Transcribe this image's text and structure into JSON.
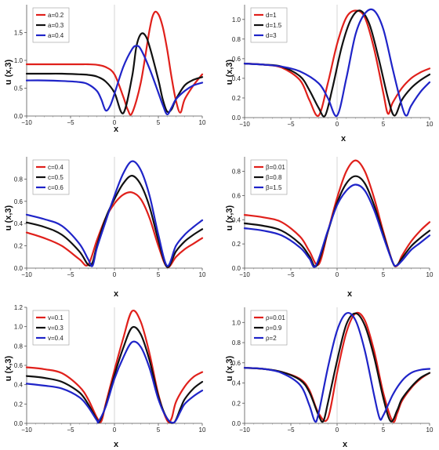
{
  "chart_data": [
    {
      "type": "line",
      "xlabel": "x",
      "ylabel": "u (x,3)",
      "xlim": [
        -10,
        10
      ],
      "ylim": [
        0,
        2.0
      ],
      "xticks": [
        "-10",
        "-5",
        "0",
        "5",
        "10"
      ],
      "yticks": [
        "0.0",
        "0.5",
        "1.0",
        "1.5"
      ],
      "legend_position": "top-left",
      "series": [
        {
          "name": "a=0.2",
          "color": "#e0201b",
          "x": [
            -10,
            -8,
            -6,
            -4,
            -3,
            -2,
            -1,
            0,
            1,
            1.5,
            2,
            3,
            4,
            4.5,
            5,
            5.5,
            6,
            6.5,
            7,
            7.5,
            8,
            9,
            10
          ],
          "y": [
            0.93,
            0.93,
            0.93,
            0.93,
            0.93,
            0.92,
            0.88,
            0.75,
            0.35,
            0.12,
            0.05,
            0.6,
            1.55,
            1.85,
            1.83,
            1.6,
            1.2,
            0.7,
            0.28,
            0.06,
            0.3,
            0.55,
            0.75
          ]
        },
        {
          "name": "a=0.3",
          "color": "#111111",
          "x": [
            -10,
            -8,
            -6,
            -4,
            -3,
            -2,
            -1,
            0,
            1,
            2,
            2.5,
            3,
            3.5,
            4,
            5,
            5.5,
            6,
            6.5,
            7,
            8,
            9,
            10
          ],
          "y": [
            0.76,
            0.76,
            0.76,
            0.75,
            0.74,
            0.71,
            0.62,
            0.42,
            0.05,
            0.7,
            1.25,
            1.47,
            1.45,
            1.25,
            0.65,
            0.3,
            0.08,
            0.12,
            0.3,
            0.55,
            0.65,
            0.7
          ]
        },
        {
          "name": "a=0.4",
          "color": "#1f24c8",
          "x": [
            -10,
            -8,
            -6,
            -4,
            -3,
            -2,
            -1.5,
            -1,
            -0.5,
            0,
            1,
            2,
            2.5,
            3,
            4,
            5,
            5.5,
            6,
            6.5,
            7,
            8,
            9,
            10
          ],
          "y": [
            0.64,
            0.64,
            0.63,
            0.61,
            0.57,
            0.45,
            0.3,
            0.1,
            0.18,
            0.4,
            0.88,
            1.2,
            1.26,
            1.2,
            0.85,
            0.42,
            0.2,
            0.03,
            0.15,
            0.3,
            0.45,
            0.55,
            0.6
          ]
        }
      ]
    },
    {
      "type": "line",
      "xlabel": "x",
      "ylabel": "u (x,3)",
      "xlim": [
        -10,
        10
      ],
      "ylim": [
        0,
        1.15
      ],
      "xticks": [
        "-10",
        "-5",
        "0",
        "5",
        "10"
      ],
      "yticks": [
        "0.0",
        "0.2",
        "0.4",
        "0.6",
        "0.8",
        "1.0"
      ],
      "legend_position": "top-left",
      "series": [
        {
          "name": "d=1",
          "color": "#e0201b",
          "x": [
            -10,
            -8,
            -6,
            -4,
            -3,
            -2,
            -1,
            0,
            1,
            2,
            3,
            4,
            5,
            5.5,
            6,
            7,
            8,
            9,
            10
          ],
          "y": [
            0.55,
            0.54,
            0.51,
            0.38,
            0.18,
            0.02,
            0.35,
            0.75,
            1.02,
            1.09,
            1.02,
            0.7,
            0.25,
            0.04,
            0.15,
            0.3,
            0.4,
            0.46,
            0.5
          ]
        },
        {
          "name": "d=1.5",
          "color": "#111111",
          "x": [
            -10,
            -8,
            -6,
            -4,
            -3,
            -2,
            -1.3,
            -0.5,
            0.5,
            1.5,
            2.5,
            3.5,
            4.5,
            5.5,
            6.2,
            7,
            8,
            9,
            10
          ],
          "y": [
            0.55,
            0.54,
            0.52,
            0.42,
            0.28,
            0.1,
            0.02,
            0.3,
            0.72,
            1.0,
            1.09,
            0.95,
            0.6,
            0.2,
            0.02,
            0.18,
            0.3,
            0.38,
            0.44
          ]
        },
        {
          "name": "d=3",
          "color": "#1f24c8",
          "x": [
            -10,
            -8,
            -6,
            -4,
            -2,
            -1,
            0,
            1,
            2,
            3,
            4,
            5,
            6,
            7,
            7.5,
            8,
            9,
            10
          ],
          "y": [
            0.55,
            0.54,
            0.52,
            0.47,
            0.35,
            0.2,
            0.02,
            0.4,
            0.85,
            1.06,
            1.09,
            0.9,
            0.5,
            0.12,
            0.02,
            0.12,
            0.26,
            0.36
          ]
        }
      ]
    },
    {
      "type": "line",
      "xlabel": "x",
      "ylabel": "u (x,3)",
      "xlim": [
        -10,
        10
      ],
      "ylim": [
        0,
        1.0
      ],
      "xticks": [
        "-10",
        "-5",
        "0",
        "5",
        "10"
      ],
      "yticks": [
        "0.0",
        "0.2",
        "0.4",
        "0.6",
        "0.8"
      ],
      "legend_position": "top-left",
      "series": [
        {
          "name": "c=0.4",
          "color": "#e0201b",
          "x": [
            -10,
            -8,
            -6,
            -4,
            -3,
            -2,
            -1,
            0,
            1,
            2,
            3,
            4,
            5,
            6,
            7,
            8,
            9,
            10
          ],
          "y": [
            0.32,
            0.27,
            0.2,
            0.08,
            0.03,
            0.25,
            0.45,
            0.58,
            0.66,
            0.68,
            0.62,
            0.45,
            0.2,
            0.01,
            0.1,
            0.17,
            0.22,
            0.27
          ]
        },
        {
          "name": "c=0.5",
          "color": "#111111",
          "x": [
            -10,
            -8,
            -6,
            -4,
            -3,
            -2.5,
            -2,
            -1,
            0,
            1,
            2,
            3,
            4,
            5,
            6,
            7,
            8,
            9,
            10
          ],
          "y": [
            0.41,
            0.37,
            0.3,
            0.15,
            0.03,
            0.05,
            0.2,
            0.45,
            0.62,
            0.76,
            0.83,
            0.75,
            0.55,
            0.25,
            0.01,
            0.15,
            0.24,
            0.3,
            0.35
          ]
        },
        {
          "name": "c=0.6",
          "color": "#1f24c8",
          "x": [
            -10,
            -8,
            -6,
            -4,
            -3,
            -2.5,
            -2,
            -1,
            0,
            1,
            2,
            3,
            4,
            5,
            6,
            7,
            8,
            9,
            10
          ],
          "y": [
            0.48,
            0.44,
            0.38,
            0.22,
            0.08,
            0.02,
            0.18,
            0.42,
            0.65,
            0.85,
            0.96,
            0.88,
            0.65,
            0.3,
            0.02,
            0.2,
            0.3,
            0.37,
            0.43
          ]
        }
      ]
    },
    {
      "type": "line",
      "xlabel": "x",
      "ylabel": "u (x,3)",
      "xlim": [
        -10,
        10
      ],
      "ylim": [
        0,
        0.92
      ],
      "xticks": [
        "-10",
        "-5",
        "0",
        "5",
        "10"
      ],
      "yticks": [
        "0.0",
        "0.2",
        "0.4",
        "0.6",
        "0.8"
      ],
      "legend_position": "top-left",
      "series": [
        {
          "name": "β=0.01",
          "color": "#e0201b",
          "x": [
            -10,
            -8,
            -6,
            -4,
            -3,
            -2,
            -1,
            0,
            1,
            2,
            3,
            4,
            5,
            6,
            6.5,
            7,
            8,
            9,
            10
          ],
          "y": [
            0.44,
            0.42,
            0.38,
            0.26,
            0.14,
            0.03,
            0.3,
            0.58,
            0.8,
            0.89,
            0.8,
            0.58,
            0.3,
            0.05,
            0.02,
            0.1,
            0.22,
            0.31,
            0.38
          ]
        },
        {
          "name": "β=0.8",
          "color": "#111111",
          "x": [
            -10,
            -8,
            -6,
            -4,
            -3,
            -2.2,
            -1,
            0,
            1,
            2,
            3,
            4,
            5,
            6,
            6.4,
            7,
            8,
            9,
            10
          ],
          "y": [
            0.37,
            0.35,
            0.31,
            0.2,
            0.1,
            0.02,
            0.3,
            0.54,
            0.7,
            0.76,
            0.7,
            0.52,
            0.28,
            0.05,
            0.02,
            0.08,
            0.18,
            0.25,
            0.31
          ]
        },
        {
          "name": "β=1.5",
          "color": "#1f24c8",
          "x": [
            -10,
            -8,
            -6,
            -4,
            -3,
            -2.3,
            -1,
            0,
            1,
            2,
            3,
            4,
            5,
            6,
            6.4,
            7,
            8,
            9,
            10
          ],
          "y": [
            0.33,
            0.31,
            0.27,
            0.17,
            0.08,
            0.02,
            0.31,
            0.52,
            0.64,
            0.69,
            0.64,
            0.48,
            0.26,
            0.05,
            0.02,
            0.06,
            0.15,
            0.21,
            0.27
          ]
        }
      ]
    },
    {
      "type": "line",
      "xlabel": "x",
      "ylabel": "u (x,3)",
      "xlim": [
        -10,
        10
      ],
      "ylim": [
        0,
        1.2
      ],
      "xticks": [
        "-10",
        "-5",
        "0",
        "5",
        "10"
      ],
      "yticks": [
        "0.0",
        "0.2",
        "0.4",
        "0.6",
        "0.8",
        "1.0",
        "1.2"
      ],
      "legend_position": "top-left",
      "series": [
        {
          "name": "v=0.1",
          "color": "#e0201b",
          "x": [
            -10,
            -8,
            -6,
            -4,
            -3,
            -2,
            -1.5,
            -1,
            0,
            1,
            2,
            3,
            4,
            5,
            6,
            6.5,
            7,
            8,
            9,
            10
          ],
          "y": [
            0.58,
            0.56,
            0.52,
            0.38,
            0.25,
            0.06,
            0.02,
            0.2,
            0.55,
            0.88,
            1.16,
            1.05,
            0.72,
            0.3,
            0.03,
            0.05,
            0.22,
            0.38,
            0.48,
            0.53
          ]
        },
        {
          "name": "v=0.3",
          "color": "#111111",
          "x": [
            -10,
            -8,
            -6,
            -4,
            -3,
            -2,
            -1.7,
            -1,
            0,
            1,
            2,
            3,
            4,
            5,
            6,
            6.8,
            7.5,
            8,
            9,
            10
          ],
          "y": [
            0.49,
            0.47,
            0.43,
            0.32,
            0.2,
            0.04,
            0.02,
            0.18,
            0.5,
            0.78,
            0.99,
            0.92,
            0.65,
            0.28,
            0.05,
            0.01,
            0.15,
            0.25,
            0.36,
            0.43
          ]
        },
        {
          "name": "v=0.4",
          "color": "#1f24c8",
          "x": [
            -10,
            -8,
            -6,
            -4,
            -3,
            -2,
            -1.8,
            -1,
            0,
            1,
            2,
            3,
            4,
            5,
            6,
            6.8,
            7.5,
            8,
            9,
            10
          ],
          "y": [
            0.41,
            0.39,
            0.36,
            0.27,
            0.17,
            0.03,
            0.02,
            0.17,
            0.46,
            0.68,
            0.84,
            0.79,
            0.57,
            0.25,
            0.05,
            0.01,
            0.12,
            0.2,
            0.28,
            0.34
          ]
        }
      ]
    },
    {
      "type": "line",
      "xlabel": "x",
      "ylabel": "u (x,3)",
      "xlim": [
        -10,
        10
      ],
      "ylim": [
        0,
        1.15
      ],
      "xticks": [
        "-10",
        "-5",
        "0",
        "5",
        "10"
      ],
      "yticks": [
        "0.0",
        "0.2",
        "0.4",
        "0.6",
        "0.8",
        "1.0"
      ],
      "legend_position": "top-left",
      "series": [
        {
          "name": "ρ=0.01",
          "color": "#e0201b",
          "x": [
            -10,
            -8,
            -6,
            -4,
            -3,
            -2,
            -1,
            0,
            1,
            2,
            3,
            4,
            5,
            6,
            6.5,
            7,
            8,
            9,
            10
          ],
          "y": [
            0.55,
            0.54,
            0.51,
            0.44,
            0.33,
            0.1,
            0.05,
            0.5,
            0.9,
            1.09,
            1.02,
            0.72,
            0.3,
            0.02,
            0.1,
            0.22,
            0.35,
            0.44,
            0.5
          ]
        },
        {
          "name": "ρ=0.9",
          "color": "#111111",
          "x": [
            -10,
            -8,
            -6,
            -4,
            -3,
            -2,
            -1.5,
            -1,
            0,
            1,
            2,
            3,
            4,
            5,
            5.8,
            6.5,
            7,
            8,
            9,
            10
          ],
          "y": [
            0.55,
            0.54,
            0.51,
            0.43,
            0.31,
            0.08,
            0.02,
            0.2,
            0.62,
            0.98,
            1.09,
            0.97,
            0.66,
            0.25,
            0.02,
            0.13,
            0.24,
            0.36,
            0.45,
            0.5
          ]
        },
        {
          "name": "ρ=2",
          "color": "#1f24c8",
          "x": [
            -10,
            -8,
            -6,
            -4,
            -3,
            -2.4,
            -2,
            -1,
            0,
            1,
            2,
            3,
            4,
            4.6,
            5,
            6,
            7,
            8,
            9,
            10
          ],
          "y": [
            0.55,
            0.54,
            0.5,
            0.38,
            0.18,
            0.02,
            0.1,
            0.55,
            0.92,
            1.09,
            1.02,
            0.72,
            0.28,
            0.05,
            0.08,
            0.28,
            0.42,
            0.5,
            0.53,
            0.54
          ]
        }
      ]
    }
  ]
}
